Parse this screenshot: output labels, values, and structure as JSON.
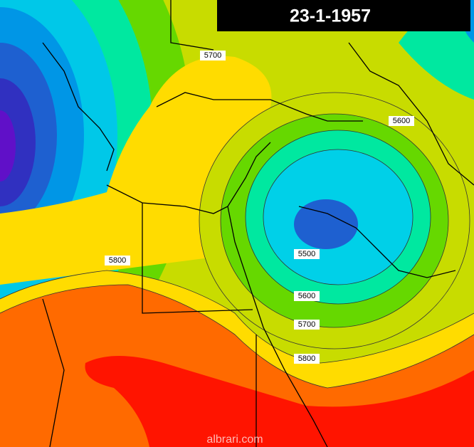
{
  "title": "23-1-1957",
  "contour_labels": [
    "5700",
    "5600",
    "5800",
    "5500",
    "5600",
    "5700",
    "5800"
  ],
  "watermark": "albrari.com"
}
